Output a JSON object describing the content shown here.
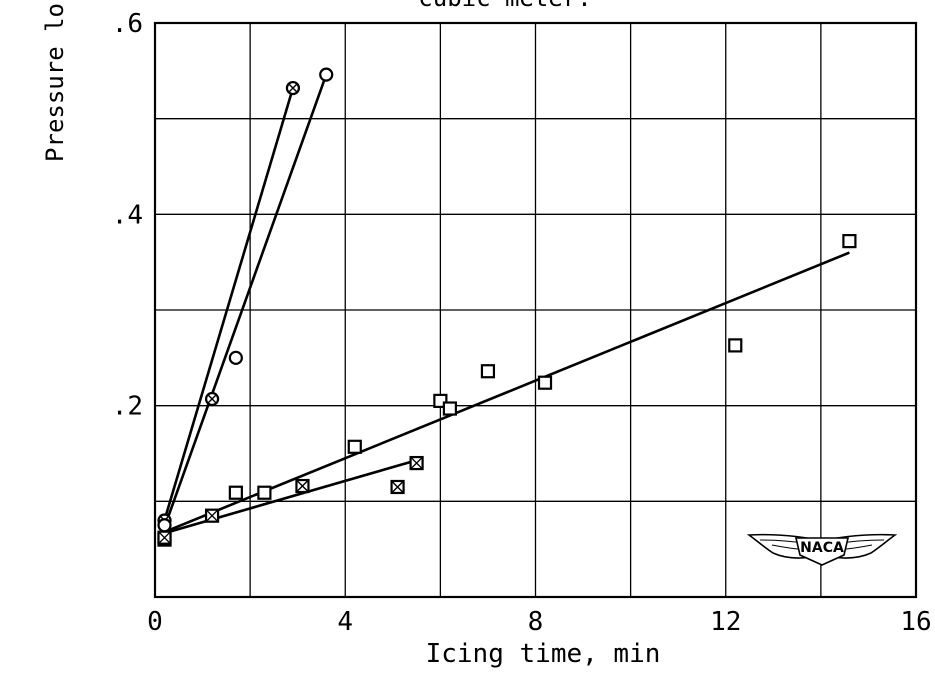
{
  "chart_data": {
    "type": "scatter",
    "title_fragment": "cubic meter.",
    "ylabel_fragment": "Pressure lo",
    "xlabel": "Icing time, min",
    "xlim": [
      0,
      16
    ],
    "ylim": [
      0,
      0.6
    ],
    "x_ticks": [
      {
        "value": 0,
        "label": "0"
      },
      {
        "value": 4,
        "label": "4"
      },
      {
        "value": 8,
        "label": "8"
      },
      {
        "value": 12,
        "label": "12"
      },
      {
        "value": 16,
        "label": "16"
      }
    ],
    "y_ticks": [
      {
        "value": 0.2,
        "label": ".2"
      },
      {
        "value": 0.4,
        "label": ".4"
      },
      {
        "value": 0.6,
        "label": ".6"
      }
    ],
    "grid": true,
    "grid_step_x": 2,
    "grid_step_y": 0.1,
    "series": [
      {
        "marker": "circle-cross",
        "points": [
          [
            0.2,
            0.08
          ],
          [
            1.2,
            0.207
          ],
          [
            2.9,
            0.532
          ]
        ],
        "fit_line": [
          [
            0.15,
            0.072
          ],
          [
            2.9,
            0.532
          ]
        ]
      },
      {
        "marker": "circle",
        "points": [
          [
            0.2,
            0.075
          ],
          [
            1.7,
            0.25
          ],
          [
            3.6,
            0.546
          ]
        ],
        "fit_line": [
          [
            0.15,
            0.066
          ],
          [
            3.6,
            0.546
          ]
        ]
      },
      {
        "marker": "square",
        "points": [
          [
            0.2,
            0.06
          ],
          [
            1.7,
            0.109
          ],
          [
            2.3,
            0.109
          ],
          [
            4.2,
            0.157
          ],
          [
            6.0,
            0.205
          ],
          [
            6.2,
            0.197
          ],
          [
            7.0,
            0.236
          ],
          [
            8.2,
            0.224
          ],
          [
            12.2,
            0.263
          ],
          [
            14.6,
            0.372
          ]
        ],
        "fit_line": [
          [
            0.15,
            0.067
          ],
          [
            14.6,
            0.36
          ]
        ]
      },
      {
        "marker": "square-cross",
        "points": [
          [
            0.2,
            0.062
          ],
          [
            1.2,
            0.085
          ],
          [
            3.1,
            0.116
          ],
          [
            5.1,
            0.115
          ],
          [
            5.5,
            0.14
          ]
        ],
        "fit_line": [
          [
            0.15,
            0.066
          ],
          [
            5.5,
            0.143
          ]
        ]
      }
    ],
    "logo": "NACA"
  },
  "icons": {
    "logo": "naca-wings-logo"
  }
}
